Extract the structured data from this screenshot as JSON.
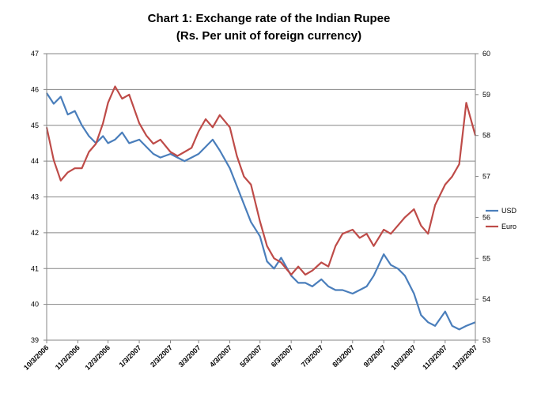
{
  "chart_data": {
    "type": "line",
    "title": "Chart 1: Exchange rate of the Indian Rupee",
    "subtitle": "(Rs. Per unit of foreign currency)",
    "x_start": "10/3/2006",
    "x_end": "12/3/2007",
    "x_ticks": [
      "10/3/2006",
      "11/3/2006",
      "12/3/2006",
      "1/3/2007",
      "2/3/2007",
      "3/3/2007",
      "4/3/2007",
      "5/3/2007",
      "6/3/2007",
      "7/3/2007",
      "8/3/2007",
      "9/3/2007",
      "10/3/2007",
      "11/3/2007",
      "12/3/2007"
    ],
    "y_left": {
      "min": 39,
      "max": 47,
      "ticks": [
        "39",
        "40",
        "41",
        "42",
        "43",
        "44",
        "45",
        "46",
        "47"
      ]
    },
    "y_right": {
      "min": 53,
      "max": 60,
      "ticks": [
        "53",
        "54",
        "55",
        "56",
        "57",
        "58",
        "59",
        "60"
      ]
    },
    "grid": true,
    "legend_position": "right",
    "series": [
      {
        "name": "USD",
        "axis": "left",
        "color": "#4a7ebb",
        "points": [
          [
            "10/3/2006",
            45.9
          ],
          [
            "10/10/2006",
            45.6
          ],
          [
            "10/17/2006",
            45.8
          ],
          [
            "10/24/2006",
            45.3
          ],
          [
            "10/31/2006",
            45.4
          ],
          [
            "11/7/2006",
            45.0
          ],
          [
            "11/14/2006",
            44.7
          ],
          [
            "11/21/2006",
            44.5
          ],
          [
            "11/28/2006",
            44.7
          ],
          [
            "12/3/2006",
            44.5
          ],
          [
            "12/10/2006",
            44.6
          ],
          [
            "12/17/2006",
            44.8
          ],
          [
            "12/24/2006",
            44.5
          ],
          [
            "1/3/2007",
            44.6
          ],
          [
            "1/10/2007",
            44.4
          ],
          [
            "1/17/2007",
            44.2
          ],
          [
            "1/24/2007",
            44.1
          ],
          [
            "2/3/2007",
            44.2
          ],
          [
            "2/10/2007",
            44.1
          ],
          [
            "2/17/2007",
            44.0
          ],
          [
            "2/24/2007",
            44.1
          ],
          [
            "3/3/2007",
            44.2
          ],
          [
            "3/10/2007",
            44.4
          ],
          [
            "3/17/2007",
            44.6
          ],
          [
            "3/24/2007",
            44.3
          ],
          [
            "4/3/2007",
            43.8
          ],
          [
            "4/10/2007",
            43.3
          ],
          [
            "4/17/2007",
            42.8
          ],
          [
            "4/24/2007",
            42.3
          ],
          [
            "5/3/2007",
            41.9
          ],
          [
            "5/10/2007",
            41.2
          ],
          [
            "5/17/2007",
            41.0
          ],
          [
            "5/24/2007",
            41.3
          ],
          [
            "6/3/2007",
            40.8
          ],
          [
            "6/10/2007",
            40.6
          ],
          [
            "6/17/2007",
            40.6
          ],
          [
            "6/24/2007",
            40.5
          ],
          [
            "7/3/2007",
            40.7
          ],
          [
            "7/10/2007",
            40.5
          ],
          [
            "7/17/2007",
            40.4
          ],
          [
            "7/24/2007",
            40.4
          ],
          [
            "8/3/2007",
            40.3
          ],
          [
            "8/10/2007",
            40.4
          ],
          [
            "8/17/2007",
            40.5
          ],
          [
            "8/24/2007",
            40.8
          ],
          [
            "9/3/2007",
            41.4
          ],
          [
            "9/10/2007",
            41.1
          ],
          [
            "9/17/2007",
            41.0
          ],
          [
            "9/24/2007",
            40.8
          ],
          [
            "10/3/2007",
            40.3
          ],
          [
            "10/10/2007",
            39.7
          ],
          [
            "10/17/2007",
            39.5
          ],
          [
            "10/24/2007",
            39.4
          ],
          [
            "11/3/2007",
            39.8
          ],
          [
            "11/10/2007",
            39.4
          ],
          [
            "11/17/2007",
            39.3
          ],
          [
            "11/24/2007",
            39.4
          ],
          [
            "12/3/2007",
            39.5
          ]
        ]
      },
      {
        "name": "Euro",
        "axis": "right",
        "color": "#be4b48",
        "points": [
          [
            "10/3/2006",
            58.2
          ],
          [
            "10/10/2006",
            57.4
          ],
          [
            "10/17/2006",
            56.9
          ],
          [
            "10/24/2006",
            57.1
          ],
          [
            "10/31/2006",
            57.2
          ],
          [
            "11/7/2006",
            57.2
          ],
          [
            "11/14/2006",
            57.6
          ],
          [
            "11/21/2006",
            57.8
          ],
          [
            "11/28/2006",
            58.3
          ],
          [
            "12/3/2006",
            58.8
          ],
          [
            "12/10/2006",
            59.2
          ],
          [
            "12/17/2006",
            58.9
          ],
          [
            "12/24/2006",
            59.0
          ],
          [
            "1/3/2007",
            58.3
          ],
          [
            "1/10/2007",
            58.0
          ],
          [
            "1/17/2007",
            57.8
          ],
          [
            "1/24/2007",
            57.9
          ],
          [
            "2/3/2007",
            57.6
          ],
          [
            "2/10/2007",
            57.5
          ],
          [
            "2/17/2007",
            57.6
          ],
          [
            "2/24/2007",
            57.7
          ],
          [
            "3/3/2007",
            58.1
          ],
          [
            "3/10/2007",
            58.4
          ],
          [
            "3/17/2007",
            58.2
          ],
          [
            "3/24/2007",
            58.5
          ],
          [
            "4/3/2007",
            58.2
          ],
          [
            "4/10/2007",
            57.5
          ],
          [
            "4/17/2007",
            57.0
          ],
          [
            "4/24/2007",
            56.8
          ],
          [
            "5/3/2007",
            55.9
          ],
          [
            "5/10/2007",
            55.3
          ],
          [
            "5/17/2007",
            55.0
          ],
          [
            "5/24/2007",
            54.9
          ],
          [
            "6/3/2007",
            54.6
          ],
          [
            "6/10/2007",
            54.8
          ],
          [
            "6/17/2007",
            54.6
          ],
          [
            "6/24/2007",
            54.7
          ],
          [
            "7/3/2007",
            54.9
          ],
          [
            "7/10/2007",
            54.8
          ],
          [
            "7/17/2007",
            55.3
          ],
          [
            "7/24/2007",
            55.6
          ],
          [
            "8/3/2007",
            55.7
          ],
          [
            "8/10/2007",
            55.5
          ],
          [
            "8/17/2007",
            55.6
          ],
          [
            "8/24/2007",
            55.3
          ],
          [
            "9/3/2007",
            55.7
          ],
          [
            "9/10/2007",
            55.6
          ],
          [
            "9/17/2007",
            55.8
          ],
          [
            "9/24/2007",
            56.0
          ],
          [
            "10/3/2007",
            56.2
          ],
          [
            "10/10/2007",
            55.8
          ],
          [
            "10/17/2007",
            55.6
          ],
          [
            "10/24/2007",
            56.3
          ],
          [
            "11/3/2007",
            56.8
          ],
          [
            "11/10/2007",
            57.0
          ],
          [
            "11/17/2007",
            57.3
          ],
          [
            "11/24/2007",
            58.8
          ],
          [
            "12/3/2007",
            58.0
          ]
        ]
      }
    ]
  }
}
